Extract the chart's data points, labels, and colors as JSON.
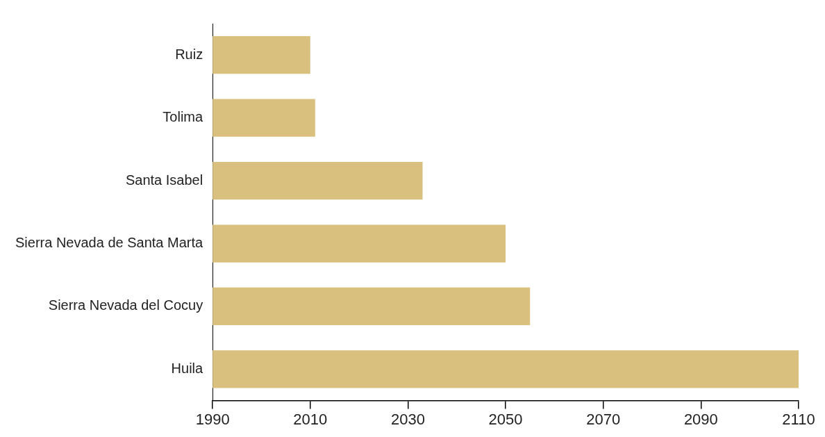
{
  "chart_data": {
    "type": "bar",
    "orientation": "horizontal",
    "categories": [
      "Ruiz",
      "Tolima",
      "Santa Isabel",
      "Sierra Nevada de Santa Marta",
      "Sierra Nevada del Cocuy",
      "Huila"
    ],
    "values": [
      2010,
      2011,
      2033,
      2050,
      2055,
      2110
    ],
    "color": "#d9c07e",
    "xlim": [
      1990,
      2110
    ],
    "xticks": [
      1990,
      2010,
      2030,
      2050,
      2070,
      2090,
      2110
    ],
    "grid": false,
    "legend": false
  }
}
